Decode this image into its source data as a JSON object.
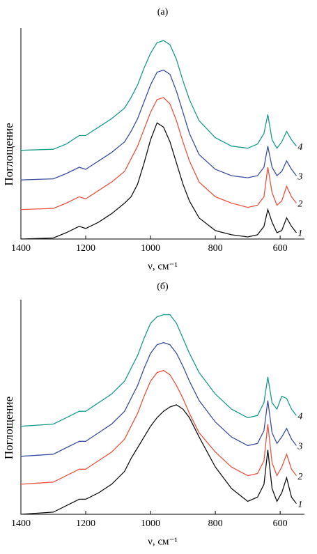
{
  "chart_data": [
    {
      "type": "line",
      "title": "(а)",
      "x_label": "ν, см⁻¹",
      "y_label": "Поглощение",
      "x": [
        1400,
        1300,
        1260,
        1220,
        1200,
        1160,
        1120,
        1080,
        1060,
        1040,
        1020,
        1000,
        980,
        960,
        940,
        920,
        900,
        880,
        850,
        800,
        750,
        700,
        670,
        650,
        638,
        625,
        610,
        595,
        580,
        565,
        550
      ],
      "xlim": [
        1400,
        525
      ],
      "xticks": [
        1400,
        1200,
        1000,
        800,
        600
      ],
      "ylim": [
        0,
        1
      ],
      "series": [
        {
          "name": "1",
          "color": "#111111",
          "values": [
            0,
            0.005,
            0.03,
            0.06,
            0.05,
            0.08,
            0.12,
            0.17,
            0.2,
            0.26,
            0.36,
            0.47,
            0.55,
            0.53,
            0.46,
            0.36,
            0.26,
            0.18,
            0.1,
            0.04,
            0.02,
            0.01,
            0.02,
            0.06,
            0.14,
            0.08,
            0.03,
            0.04,
            0.1,
            0.06,
            0.03
          ]
        },
        {
          "name": "2",
          "color": "#e8533f",
          "values": [
            0.14,
            0.145,
            0.17,
            0.2,
            0.19,
            0.23,
            0.27,
            0.32,
            0.38,
            0.44,
            0.52,
            0.6,
            0.66,
            0.67,
            0.64,
            0.56,
            0.46,
            0.37,
            0.27,
            0.2,
            0.17,
            0.15,
            0.16,
            0.2,
            0.34,
            0.22,
            0.16,
            0.18,
            0.25,
            0.2,
            0.17
          ]
        },
        {
          "name": "3",
          "color": "#3b4f9c",
          "values": [
            0.28,
            0.285,
            0.31,
            0.34,
            0.33,
            0.37,
            0.41,
            0.46,
            0.51,
            0.57,
            0.65,
            0.73,
            0.79,
            0.8,
            0.78,
            0.7,
            0.6,
            0.5,
            0.4,
            0.33,
            0.3,
            0.29,
            0.3,
            0.34,
            0.44,
            0.34,
            0.3,
            0.32,
            0.37,
            0.33,
            0.3
          ]
        },
        {
          "name": "4",
          "color": "#1a9a8c",
          "values": [
            0.42,
            0.425,
            0.45,
            0.49,
            0.49,
            0.53,
            0.57,
            0.62,
            0.67,
            0.73,
            0.81,
            0.88,
            0.93,
            0.94,
            0.92,
            0.85,
            0.75,
            0.66,
            0.56,
            0.48,
            0.44,
            0.43,
            0.45,
            0.5,
            0.59,
            0.47,
            0.43,
            0.46,
            0.51,
            0.47,
            0.44
          ]
        }
      ]
    },
    {
      "type": "line",
      "title": "(б)",
      "x_label": "ν, см⁻¹",
      "y_label": "Поглощение",
      "x": [
        1400,
        1300,
        1260,
        1220,
        1200,
        1160,
        1120,
        1080,
        1060,
        1040,
        1020,
        1000,
        980,
        960,
        940,
        920,
        900,
        880,
        850,
        800,
        750,
        700,
        670,
        650,
        638,
        625,
        610,
        595,
        580,
        565,
        550
      ],
      "xlim": [
        1400,
        525
      ],
      "xticks": [
        1400,
        1200,
        1000,
        800,
        600
      ],
      "ylim": [
        0,
        1
      ],
      "series": [
        {
          "name": "1",
          "color": "#111111",
          "values": [
            0,
            0.01,
            0.04,
            0.07,
            0.07,
            0.1,
            0.14,
            0.2,
            0.26,
            0.31,
            0.36,
            0.41,
            0.45,
            0.48,
            0.5,
            0.51,
            0.49,
            0.45,
            0.36,
            0.22,
            0.12,
            0.06,
            0.08,
            0.14,
            0.3,
            0.12,
            0.06,
            0.1,
            0.17,
            0.08,
            0.05
          ]
        },
        {
          "name": "2",
          "color": "#e8533f",
          "values": [
            0.14,
            0.15,
            0.18,
            0.21,
            0.21,
            0.25,
            0.29,
            0.35,
            0.41,
            0.47,
            0.55,
            0.62,
            0.66,
            0.67,
            0.65,
            0.6,
            0.54,
            0.47,
            0.38,
            0.29,
            0.22,
            0.18,
            0.19,
            0.25,
            0.42,
            0.24,
            0.18,
            0.22,
            0.28,
            0.21,
            0.18
          ]
        },
        {
          "name": "3",
          "color": "#3b4f9c",
          "values": [
            0.27,
            0.28,
            0.31,
            0.34,
            0.34,
            0.38,
            0.42,
            0.48,
            0.54,
            0.6,
            0.68,
            0.75,
            0.79,
            0.8,
            0.79,
            0.75,
            0.69,
            0.62,
            0.53,
            0.43,
            0.36,
            0.32,
            0.33,
            0.39,
            0.53,
            0.38,
            0.33,
            0.36,
            0.4,
            0.35,
            0.32
          ]
        },
        {
          "name": "4",
          "color": "#1a9a8c",
          "values": [
            0.41,
            0.42,
            0.45,
            0.48,
            0.48,
            0.52,
            0.56,
            0.62,
            0.68,
            0.74,
            0.82,
            0.89,
            0.92,
            0.93,
            0.93,
            0.89,
            0.82,
            0.75,
            0.66,
            0.56,
            0.49,
            0.45,
            0.46,
            0.52,
            0.64,
            0.52,
            0.49,
            0.55,
            0.54,
            0.49,
            0.46
          ]
        }
      ]
    }
  ]
}
